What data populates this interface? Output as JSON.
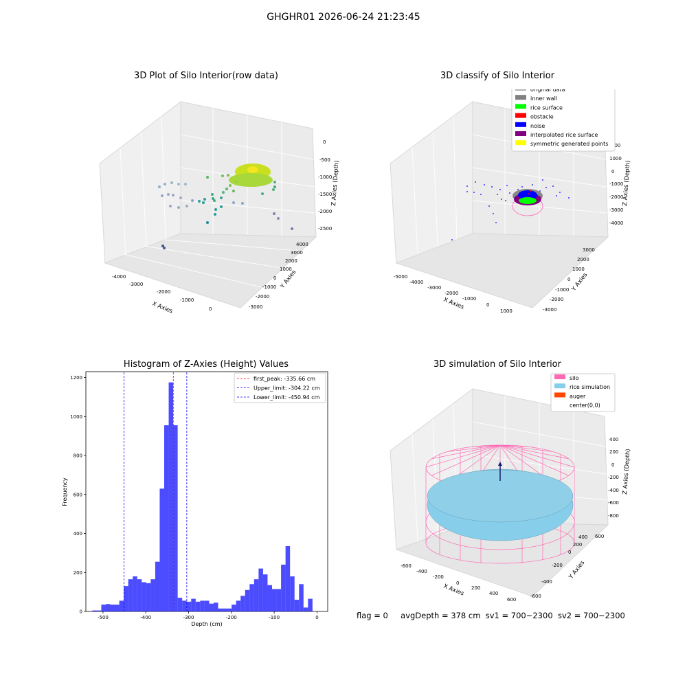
{
  "suptitle": "GHGHR01 2026-06-24 21:23:45",
  "panels": {
    "raw": {
      "title": "3D Plot of Silo Interior(row data)",
      "xlabel": "X Axies",
      "ylabel": "Y Axies",
      "zlabel": "Z Axies (Depth)",
      "xticks": [
        "-4000",
        "-3000",
        "-2000",
        "-1000",
        "0"
      ],
      "yticks": [
        "-3000",
        "-2000",
        "-1000",
        "0",
        "1000",
        "2000",
        "3000",
        "4000"
      ],
      "zticks": [
        "0",
        "-500",
        "-1000",
        "-1500",
        "-2000",
        "-2500"
      ]
    },
    "classify": {
      "title": "3D classify of Silo Interior",
      "xlabel": "X Axies",
      "ylabel": "Y Axies",
      "zlabel": "Z Axies (Depth)",
      "xticks": [
        "-5000",
        "-4000",
        "-3000",
        "-2000",
        "-1000",
        "0",
        "1000"
      ],
      "yticks": [
        "-3000",
        "-2000",
        "-1000",
        "0",
        "1000",
        "2000",
        "3000"
      ],
      "zticks": [
        "1000",
        "0",
        "-1000",
        "-2000",
        "-3000",
        "-4000"
      ],
      "zticks_hidden": "000",
      "legend": [
        {
          "label": "original data",
          "color": "#b3b3b3"
        },
        {
          "label": "inner wall",
          "color": "#808080"
        },
        {
          "label": "rice surface",
          "color": "#00ff00"
        },
        {
          "label": "obstacle",
          "color": "#ff0000"
        },
        {
          "label": "noise",
          "color": "#0000ff"
        },
        {
          "label": "interpolated rice surface",
          "color": "#800080"
        },
        {
          "label": "symmetric generated points",
          "color": "#ffff00"
        }
      ]
    },
    "histogram": {
      "title": "Histogram of Z-Axies (Height) Values"
    },
    "simulation": {
      "title": "3D simulation of Silo Interior",
      "xlabel": "X Axies",
      "ylabel": "Y Axies",
      "zlabel": "Z Axies (Depth)",
      "xticks": [
        "-600",
        "-400",
        "-200",
        "0",
        "200",
        "400",
        "600"
      ],
      "yticks": [
        "-600",
        "-400",
        "-200",
        "0",
        "200",
        "400",
        "600"
      ],
      "zticks": [
        "400",
        "200",
        "0",
        "-200",
        "-400",
        "-600",
        "-800"
      ],
      "legend": [
        {
          "label": "silo",
          "color": "#ff69b4"
        },
        {
          "label": "rice simulation",
          "color": "#87ceeb"
        },
        {
          "label": "auger",
          "color": "#ff4500"
        },
        {
          "label": "center(0,0)",
          "color": "none"
        }
      ]
    }
  },
  "status": {
    "flag": "flag = 0",
    "avg": "avgDepth = 378 cm",
    "sv1": "sv1 = 700~2300",
    "sv2": "sv2 = 700~2300"
  },
  "chart_data": [
    {
      "type": "bar",
      "title": "Histogram of Z-Axies (Height) Values",
      "xlabel": "Depth (cm)",
      "ylabel": "Frequency",
      "xlim": [
        -540,
        25
      ],
      "ylim": [
        0,
        1230
      ],
      "xticks": [
        -500,
        -400,
        -300,
        -200,
        -100,
        0
      ],
      "yticks": [
        0,
        200,
        400,
        600,
        800,
        1000,
        1200
      ],
      "bin_width": 10.5,
      "bin_start": -525,
      "values": [
        5,
        5,
        35,
        38,
        35,
        35,
        55,
        130,
        165,
        180,
        165,
        150,
        145,
        165,
        255,
        630,
        955,
        1175,
        955,
        70,
        55,
        50,
        65,
        50,
        55,
        55,
        40,
        45,
        15,
        15,
        15,
        35,
        55,
        80,
        110,
        140,
        165,
        220,
        190,
        135,
        115,
        115,
        240,
        335,
        180,
        60,
        140,
        20,
        65
      ],
      "color": "#0000ff",
      "vlines": [
        {
          "name": "first_peak",
          "value": -335.66,
          "color": "#ff0000",
          "label": "first_peak: -335.66 cm"
        },
        {
          "name": "Upper_limit",
          "value": -304.22,
          "color": "#0000ff",
          "label": "Upper_limit: -304.22 cm"
        },
        {
          "name": "Lower_limit",
          "value": -450.94,
          "color": "#0000ff",
          "label": "Lower_limit: -450.94 cm"
        }
      ],
      "legend_position": "top-right"
    }
  ]
}
